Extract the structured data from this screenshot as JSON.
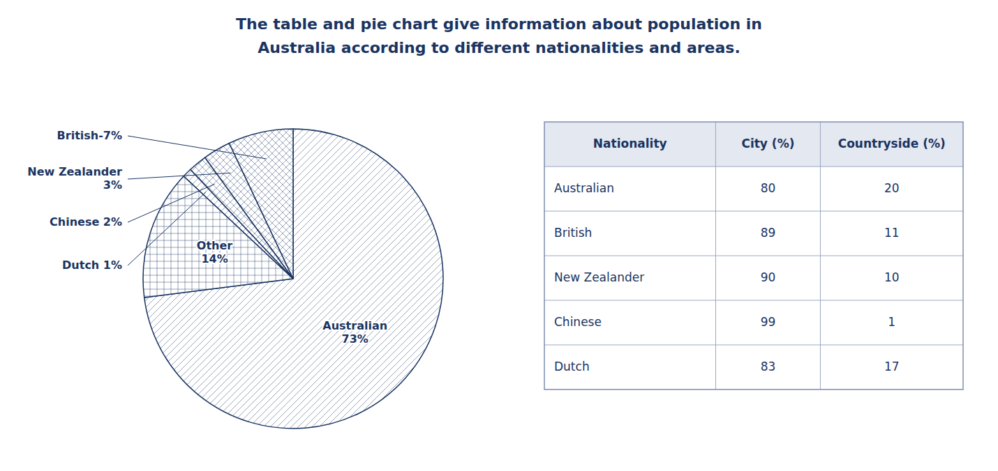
{
  "chart_data": [
    {
      "type": "pie",
      "title": "The table and pie chart give information about population in",
      "subtitle": "Australia according to different nationalities and areas.",
      "values": [
        73,
        14,
        1,
        2,
        3,
        7
      ],
      "value_labels": [
        "Australian\n73%",
        "Other\n14%",
        "Dutch 1%",
        "Chinese 2%",
        "New Zealander\n3%",
        "British-7%"
      ],
      "color": "#1a3461",
      "data_labels": true
    },
    {
      "type": "table",
      "columns": [
        "Nationality",
        "City (%)",
        "Countryside (%)"
      ],
      "rows": [
        [
          "Australian",
          80,
          20
        ],
        [
          "British",
          89,
          11
        ],
        [
          "New Zealander",
          90,
          10
        ],
        [
          "Chinese",
          99,
          1
        ],
        [
          "Dutch",
          83,
          17
        ]
      ]
    }
  ]
}
